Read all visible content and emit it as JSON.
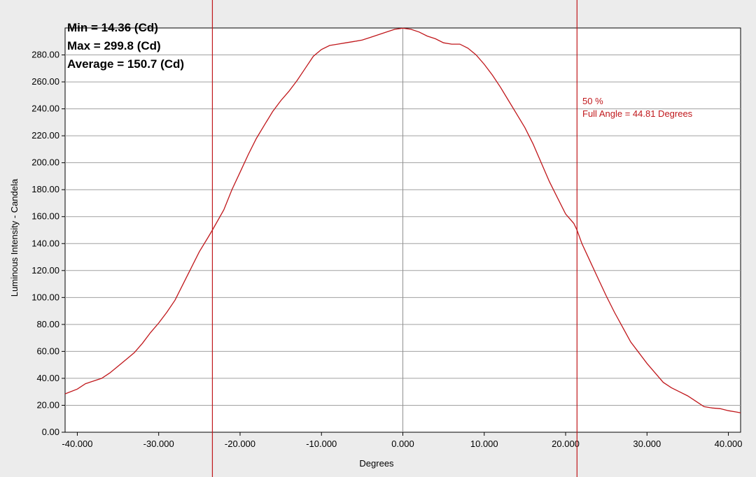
{
  "chart_data": {
    "type": "line",
    "xlabel": "Degrees",
    "ylabel": "Luminous Intensity - Candela",
    "xlim": [
      -41.5,
      41.5
    ],
    "ylim": [
      0,
      300
    ],
    "x_ticks": [
      "-40.000",
      "-30.000",
      "-20.000",
      "-10.000",
      "0.000",
      "10.000",
      "20.000",
      "30.000",
      "40.000"
    ],
    "y_ticks": [
      "0.00",
      "20.00",
      "40.00",
      "60.00",
      "80.00",
      "100.00",
      "120.00",
      "140.00",
      "160.00",
      "180.00",
      "200.00",
      "220.00",
      "240.00",
      "260.00",
      "280.00"
    ],
    "grid": true,
    "colors": {
      "series": "#c0171b",
      "markers": "#c0171b",
      "grid": "#a0a0a0",
      "center_line": "#909090"
    },
    "stats": {
      "min": "Min = 14.36 (Cd)",
      "max": "Max = 299.8 (Cd)",
      "average": "Average = 150.7 (Cd)"
    },
    "annotation": {
      "percent": "50 %",
      "full_angle": "Full Angle = 44.81 Degrees"
    },
    "markers_x": [
      -23.4,
      21.4
    ],
    "series": [
      {
        "x": [
          -41.5,
          -40,
          -39,
          -38,
          -37,
          -36,
          -35,
          -34,
          -33,
          -32,
          -31,
          -30,
          -29,
          -28,
          -27,
          -26,
          -25,
          -24,
          -23.4,
          -22,
          -21,
          -20,
          -19,
          -18,
          -17,
          -16,
          -15,
          -14,
          -13,
          -12,
          -11,
          -10,
          -9,
          -8,
          -7,
          -6,
          -5,
          -4,
          -3,
          -2,
          -1,
          0,
          1,
          2,
          3,
          4,
          5,
          6,
          7,
          8,
          9,
          10,
          11,
          12,
          13,
          14,
          15,
          16,
          17,
          18,
          19,
          20,
          21,
          21.4,
          22,
          23,
          24,
          25,
          26,
          27,
          28,
          29,
          30,
          31,
          32,
          33,
          34,
          35,
          36,
          37,
          38,
          39,
          40,
          41,
          41.5
        ],
        "y": [
          28.5,
          32,
          36,
          38,
          40,
          44,
          49,
          54,
          59,
          66,
          74,
          81,
          89,
          98,
          110,
          122,
          134,
          144,
          150,
          165,
          180,
          193,
          206,
          218,
          228,
          238,
          246,
          253,
          261,
          270,
          279,
          284,
          287,
          288,
          289,
          290,
          291,
          293,
          295,
          297,
          299,
          299.8,
          299,
          297,
          294,
          292,
          289,
          288,
          288,
          285,
          280,
          273,
          265,
          256,
          246,
          236,
          226,
          214,
          200,
          186,
          174,
          162,
          155,
          150,
          140,
          127,
          114,
          101,
          89,
          78,
          67,
          59,
          51,
          44,
          37,
          33,
          30,
          27,
          23,
          19,
          18,
          17.5,
          16,
          15,
          14.36
        ]
      }
    ]
  }
}
